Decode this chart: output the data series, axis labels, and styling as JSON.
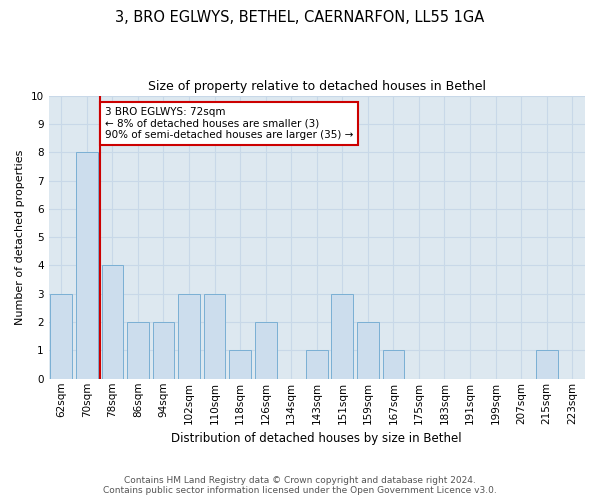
{
  "title": "3, BRO EGLWYS, BETHEL, CAERNARFON, LL55 1GA",
  "subtitle": "Size of property relative to detached houses in Bethel",
  "xlabel": "Distribution of detached houses by size in Bethel",
  "ylabel": "Number of detached properties",
  "categories": [
    "62sqm",
    "70sqm",
    "78sqm",
    "86sqm",
    "94sqm",
    "102sqm",
    "110sqm",
    "118sqm",
    "126sqm",
    "134sqm",
    "143sqm",
    "151sqm",
    "159sqm",
    "167sqm",
    "175sqm",
    "183sqm",
    "191sqm",
    "199sqm",
    "207sqm",
    "215sqm",
    "223sqm"
  ],
  "values": [
    3,
    8,
    4,
    2,
    2,
    3,
    3,
    1,
    2,
    0,
    1,
    3,
    2,
    1,
    0,
    0,
    0,
    0,
    0,
    1,
    0
  ],
  "bar_color": "#ccdded",
  "bar_edge_color": "#7aafd4",
  "annotation_box_text": "3 BRO EGLWYS: 72sqm\n← 8% of detached houses are smaller (3)\n90% of semi-detached houses are larger (35) →",
  "annotation_box_color": "#ffffff",
  "annotation_box_edge_color": "#cc0000",
  "ylim": [
    0,
    10
  ],
  "yticks": [
    0,
    1,
    2,
    3,
    4,
    5,
    6,
    7,
    8,
    9,
    10
  ],
  "grid_color": "#c8d8e8",
  "background_color": "#dde8f0",
  "footer_line1": "Contains HM Land Registry data © Crown copyright and database right 2024.",
  "footer_line2": "Contains public sector information licensed under the Open Government Licence v3.0.",
  "property_line_color": "#cc0000",
  "title_fontsize": 10.5,
  "subtitle_fontsize": 9,
  "ylabel_fontsize": 8,
  "xlabel_fontsize": 8.5,
  "tick_fontsize": 7.5,
  "footer_fontsize": 6.5
}
